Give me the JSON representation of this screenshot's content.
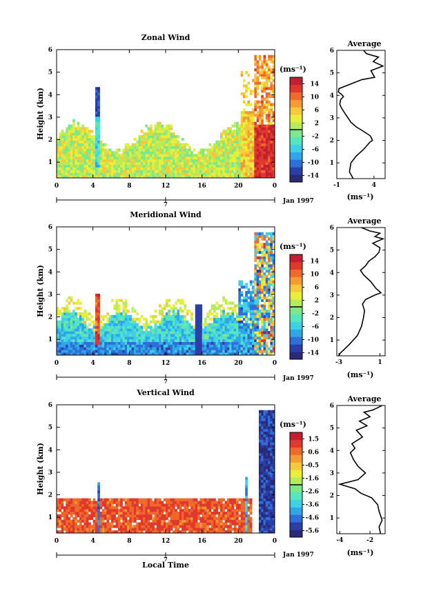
{
  "chart_data": [
    {
      "type": "heatmap",
      "title": "Zonal Wind",
      "xlabel": "",
      "ylabel": "Height (km)",
      "xlim": [
        0,
        24
      ],
      "ylim": [
        0.3,
        6
      ],
      "xticks": [
        "0",
        "4",
        "8",
        "12",
        "16",
        "20",
        "0"
      ],
      "yticks": [
        "1",
        "2",
        "3",
        "4",
        "5",
        "6"
      ],
      "date_marker": "7",
      "date_label": "Jan 1997",
      "colorbar": {
        "unit": "(ms⁻¹)",
        "ticks": [
          "14",
          "10",
          "6",
          "2",
          "-2",
          "-6",
          "-10",
          "-14"
        ],
        "range": [
          -16,
          16
        ]
      }
    },
    {
      "type": "line",
      "title": "Average",
      "xlabel": "(ms⁻¹)",
      "xticks": [
        "-1",
        "4"
      ],
      "yticks": [
        "1",
        "2",
        "3",
        "4",
        "5",
        "6"
      ],
      "xlim": [
        -1,
        5.5
      ],
      "ylim": [
        0.3,
        6
      ],
      "x": [
        1.2,
        0.7,
        0.9,
        1.6,
        2.6,
        3.4,
        3.8,
        3.5,
        2.6,
        1.6,
        0.9,
        0.5,
        0.1,
        -0.3,
        -0.6,
        -0.5,
        -0.1,
        -0.4,
        -0.8,
        -0.7,
        2.4,
        4.1,
        3.6,
        5.2,
        3.9,
        4.6,
        3.0,
        2.6
      ],
      "y": [
        0.3,
        0.6,
        1.0,
        1.3,
        1.6,
        1.9,
        2.0,
        2.2,
        2.4,
        2.6,
        2.8,
        3.0,
        3.2,
        3.4,
        3.6,
        3.8,
        3.95,
        4.05,
        4.15,
        4.3,
        4.7,
        4.8,
        5.1,
        5.3,
        5.5,
        5.7,
        5.85,
        6.0
      ]
    },
    {
      "type": "heatmap",
      "title": "Meridional Wind",
      "xlabel": "",
      "ylabel": "Height (km)",
      "xlim": [
        0,
        24
      ],
      "ylim": [
        0.3,
        6
      ],
      "xticks": [
        "0",
        "4",
        "8",
        "12",
        "16",
        "20",
        "0"
      ],
      "yticks": [
        "1",
        "2",
        "3",
        "4",
        "5",
        "6"
      ],
      "date_marker": "7",
      "date_label": "Jan 1997",
      "colorbar": {
        "unit": "(ms⁻¹)",
        "ticks": [
          "14",
          "10",
          "6",
          "2",
          "-2",
          "-6",
          "-10",
          "-14"
        ],
        "range": [
          -16,
          16
        ]
      }
    },
    {
      "type": "line",
      "title": "Average",
      "xlabel": "(ms⁻¹)",
      "xticks": [
        "-3",
        "1"
      ],
      "yticks": [
        "1",
        "2",
        "3",
        "4",
        "5",
        "6"
      ],
      "xlim": [
        -3.2,
        1.5
      ],
      "ylim": [
        0.3,
        6
      ],
      "x": [
        -3.0,
        -2.9,
        -2.0,
        -1.2,
        -0.8,
        -0.6,
        -0.5,
        -0.7,
        -0.4,
        0.5,
        1.1,
        0.6,
        0.1,
        -0.6,
        -0.9,
        -0.4,
        -0.1,
        0.5,
        0.9,
        1.0,
        0.3,
        1.3,
        0.5,
        1.0,
        0.0,
        -0.8
      ],
      "y": [
        0.3,
        0.4,
        0.8,
        1.2,
        1.6,
        2.0,
        2.3,
        2.6,
        2.8,
        3.0,
        3.1,
        3.3,
        3.6,
        3.9,
        4.1,
        4.3,
        4.5,
        4.7,
        4.9,
        5.1,
        5.3,
        5.5,
        5.6,
        5.75,
        5.85,
        6.0
      ]
    },
    {
      "type": "heatmap",
      "title": "Vertical Wind",
      "xlabel": "Local Time",
      "ylabel": "Height (km)",
      "xlim": [
        0,
        24
      ],
      "ylim": [
        0.3,
        6
      ],
      "xticks": [
        "0",
        "4",
        "8",
        "12",
        "16",
        "20",
        "0"
      ],
      "yticks": [
        "1",
        "2",
        "3",
        "4",
        "5",
        "6"
      ],
      "date_marker": "7",
      "date_label": "Jan 1997",
      "colorbar": {
        "unit": "(ms⁻¹)",
        "ticks": [
          "1.5",
          "0.6",
          "-0.5",
          "-1.6",
          "-2.6",
          "-3.6",
          "-4.6",
          "-5.6"
        ],
        "range": [
          -6,
          2
        ]
      }
    },
    {
      "type": "line",
      "title": "Average",
      "xlabel": "(ms⁻¹)",
      "xticks": [
        "-4",
        "-2"
      ],
      "yticks": [
        "1",
        "2",
        "3",
        "4",
        "5",
        "6"
      ],
      "xlim": [
        -4.2,
        -1.0
      ],
      "ylim": [
        0.3,
        6
      ],
      "x": [
        -1.3,
        -1.4,
        -1.2,
        -1.4,
        -1.5,
        -1.9,
        -2.6,
        -3.0,
        -3.5,
        -4.0,
        -2.8,
        -2.3,
        -2.8,
        -3.1,
        -3.3,
        -3.0,
        -3.2,
        -2.5,
        -2.9,
        -2.2,
        -2.7,
        -2.0,
        -2.4,
        -1.8,
        -1.5,
        -1.2
      ],
      "y": [
        0.3,
        0.6,
        0.9,
        1.3,
        1.6,
        1.9,
        2.1,
        2.3,
        2.4,
        2.5,
        2.7,
        3.0,
        3.3,
        3.6,
        3.9,
        4.1,
        4.3,
        4.6,
        4.9,
        5.1,
        5.3,
        5.5,
        5.7,
        5.8,
        5.9,
        6.0
      ]
    }
  ]
}
